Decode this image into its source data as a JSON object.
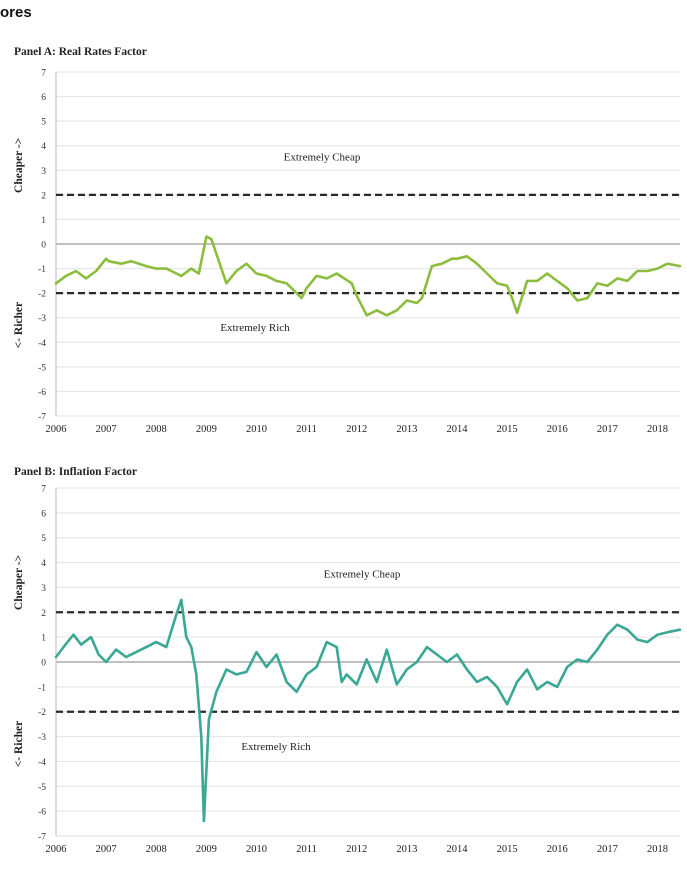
{
  "header_fragment": "ores",
  "chart_data": [
    {
      "type": "line",
      "title": "Panel A: Real Rates Factor",
      "ylabel_top": "Cheaper ->",
      "ylabel_bottom": "<- Richer",
      "ylim": [
        -7,
        7
      ],
      "yticks": [
        "7",
        "6",
        "5",
        "4",
        "3",
        "2",
        "1",
        "0",
        "-1",
        "-2",
        "-3",
        "-4",
        "-5",
        "-6",
        "-7"
      ],
      "xlim": [
        2006,
        2018.45
      ],
      "xticks": [
        "2006",
        "2007",
        "2008",
        "2009",
        "2010",
        "2011",
        "2012",
        "2013",
        "2014",
        "2015",
        "2016",
        "2017",
        "2018"
      ],
      "grid": true,
      "thresholds": [
        2,
        -2
      ],
      "annotations": [
        "Extremely Cheap",
        "Extremely Rich"
      ],
      "color": "#8cbd3f",
      "x": [
        2006.0,
        2006.2,
        2006.4,
        2006.6,
        2006.8,
        2007.0,
        2007.05,
        2007.3,
        2007.5,
        2007.8,
        2008.0,
        2008.2,
        2008.5,
        2008.7,
        2008.85,
        2009.0,
        2009.1,
        2009.25,
        2009.4,
        2009.6,
        2009.8,
        2010.0,
        2010.2,
        2010.4,
        2010.6,
        2010.7,
        2010.9,
        2011.0,
        2011.2,
        2011.4,
        2011.6,
        2011.9,
        2012.0,
        2012.2,
        2012.4,
        2012.6,
        2012.8,
        2013.0,
        2013.2,
        2013.3,
        2013.5,
        2013.7,
        2013.9,
        2014.0,
        2014.2,
        2014.4,
        2014.6,
        2014.8,
        2015.0,
        2015.1,
        2015.2,
        2015.4,
        2015.6,
        2015.8,
        2016.0,
        2016.2,
        2016.4,
        2016.6,
        2016.8,
        2017.0,
        2017.2,
        2017.4,
        2017.6,
        2017.8,
        2018.0,
        2018.2,
        2018.45
      ],
      "y": [
        -1.6,
        -1.3,
        -1.1,
        -1.4,
        -1.1,
        -0.6,
        -0.7,
        -0.8,
        -0.7,
        -0.9,
        -1.0,
        -1.0,
        -1.3,
        -1.0,
        -1.2,
        0.3,
        0.2,
        -0.7,
        -1.6,
        -1.1,
        -0.8,
        -1.2,
        -1.3,
        -1.5,
        -1.6,
        -1.8,
        -2.2,
        -1.8,
        -1.3,
        -1.4,
        -1.2,
        -1.6,
        -2.1,
        -2.9,
        -2.7,
        -2.9,
        -2.7,
        -2.3,
        -2.4,
        -2.2,
        -0.9,
        -0.8,
        -0.6,
        -0.6,
        -0.5,
        -0.8,
        -1.2,
        -1.6,
        -1.7,
        -2.2,
        -2.8,
        -1.5,
        -1.5,
        -1.2,
        -1.5,
        -1.8,
        -2.3,
        -2.2,
        -1.6,
        -1.7,
        -1.4,
        -1.5,
        -1.1,
        -1.1,
        -1.0,
        -0.8,
        -0.9
      ]
    },
    {
      "type": "line",
      "title": "Panel B: Inflation Factor",
      "ylabel_top": "Cheaper ->",
      "ylabel_bottom": "<- Richer",
      "ylim": [
        -7,
        7
      ],
      "yticks": [
        "7",
        "6",
        "5",
        "4",
        "3",
        "2",
        "1",
        "0",
        "-1",
        "-2",
        "-3",
        "-4",
        "-5",
        "-6",
        "-7"
      ],
      "xlim": [
        2006,
        2018.45
      ],
      "xticks": [
        "2006",
        "2007",
        "2008",
        "2009",
        "2010",
        "2011",
        "2012",
        "2013",
        "2014",
        "2015",
        "2016",
        "2017",
        "2018"
      ],
      "grid": true,
      "thresholds": [
        2,
        -2
      ],
      "annotations": [
        "Extremely Cheap",
        "Extremely Rich"
      ],
      "color": "#3aa894",
      "x": [
        2006.0,
        2006.15,
        2006.35,
        2006.5,
        2006.7,
        2006.85,
        2007.0,
        2007.2,
        2007.4,
        2007.6,
        2007.8,
        2008.0,
        2008.2,
        2008.4,
        2008.5,
        2008.6,
        2008.7,
        2008.8,
        2008.9,
        2008.95,
        2009.05,
        2009.2,
        2009.4,
        2009.6,
        2009.8,
        2010.0,
        2010.2,
        2010.4,
        2010.6,
        2010.8,
        2011.0,
        2011.2,
        2011.4,
        2011.6,
        2011.7,
        2011.8,
        2012.0,
        2012.2,
        2012.4,
        2012.6,
        2012.8,
        2013.0,
        2013.2,
        2013.4,
        2013.6,
        2013.8,
        2014.0,
        2014.2,
        2014.4,
        2014.6,
        2014.8,
        2015.0,
        2015.2,
        2015.4,
        2015.6,
        2015.8,
        2016.0,
        2016.2,
        2016.4,
        2016.6,
        2016.8,
        2017.0,
        2017.2,
        2017.4,
        2017.6,
        2017.8,
        2018.0,
        2018.2,
        2018.45
      ],
      "y": [
        0.2,
        0.6,
        1.1,
        0.7,
        1.0,
        0.3,
        0.0,
        0.5,
        0.2,
        0.4,
        0.6,
        0.8,
        0.6,
        1.9,
        2.5,
        1.0,
        0.6,
        -0.5,
        -3.0,
        -6.4,
        -2.3,
        -1.2,
        -0.3,
        -0.5,
        -0.4,
        0.4,
        -0.2,
        0.3,
        -0.8,
        -1.2,
        -0.5,
        -0.2,
        0.8,
        0.6,
        -0.8,
        -0.5,
        -0.9,
        0.1,
        -0.8,
        0.5,
        -0.9,
        -0.3,
        0.0,
        0.6,
        0.3,
        0.0,
        0.3,
        -0.3,
        -0.8,
        -0.6,
        -1.0,
        -1.7,
        -0.8,
        -0.3,
        -1.1,
        -0.8,
        -1.0,
        -0.2,
        0.1,
        0.0,
        0.5,
        1.1,
        1.5,
        1.3,
        0.9,
        0.8,
        1.1,
        1.2,
        1.3
      ]
    }
  ]
}
